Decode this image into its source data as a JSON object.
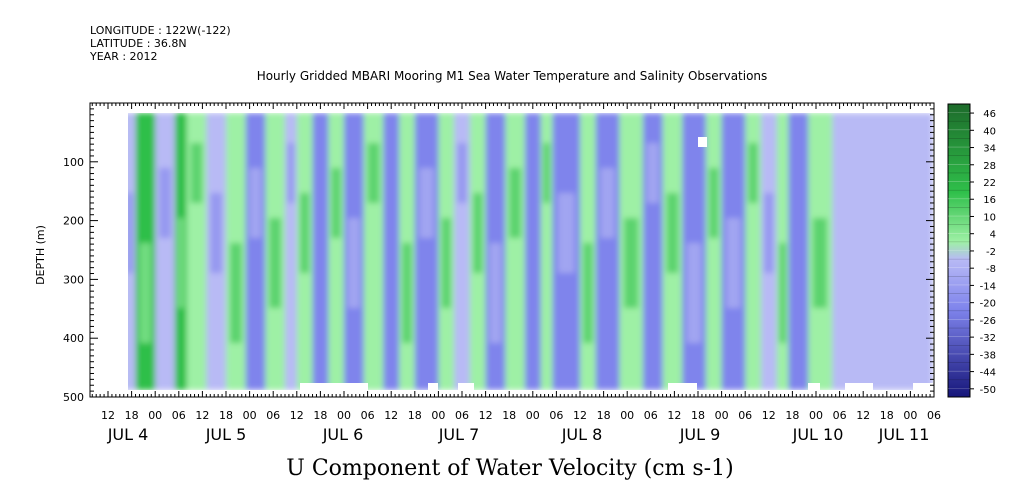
{
  "header": {
    "longitude": "LONGITUDE : 122W(-122)",
    "latitude": "LATITUDE : 36.8N",
    "year": "YEAR : 2012"
  },
  "chart_data": {
    "type": "heatmap",
    "title": "Hourly Gridded MBARI Mooring M1 Sea Water Temperature and Salinity Observations",
    "xlabel": "U Component of Water Velocity (cm s-1)",
    "ylabel": "DEPTH (m)",
    "y_ticks": [
      100,
      200,
      300,
      400,
      500
    ],
    "ylim": [
      500,
      0
    ],
    "hour_ticks": [
      "12",
      "18",
      "00",
      "06",
      "12",
      "18",
      "00",
      "06",
      "12",
      "18",
      "00",
      "06",
      "12",
      "18",
      "00",
      "06",
      "12",
      "18",
      "00",
      "06",
      "12",
      "18",
      "00",
      "06",
      "12",
      "18",
      "00",
      "06",
      "12",
      "18",
      "00",
      "06",
      "12",
      "18",
      "00",
      "06"
    ],
    "day_labels": [
      "JUL  4",
      "JUL  5",
      "JUL  6",
      "JUL  7",
      "JUL  8",
      "JUL  9",
      "JUL 10",
      "JUL 11"
    ],
    "colorbar": {
      "ticks": [
        "46",
        "40",
        "34",
        "28",
        "22",
        "16",
        "10",
        "4",
        "-2",
        "-8",
        "-14",
        "-20",
        "-26",
        "-32",
        "-38",
        "-44",
        "-50"
      ],
      "colors": {
        "green_dark": "#1d6b2b",
        "green_mid": "#2fbf4a",
        "green_light": "#9ef0a5",
        "blue_light": "#b8baf5",
        "blue_mid": "#7f84ec",
        "blue_dark": "#16167a"
      }
    },
    "regions": [
      {
        "t0": 0,
        "t1": 4,
        "level": 10
      },
      {
        "t0": 4,
        "t1": 7,
        "level": -8
      },
      {
        "t0": 7,
        "t1": 12,
        "level": 16
      },
      {
        "t0": 12,
        "t1": 17,
        "level": -8
      },
      {
        "t0": 17,
        "t1": 20,
        "level": 12
      },
      {
        "t0": 20,
        "t1": 25,
        "level": 8
      },
      {
        "t0": 25,
        "t1": 30,
        "level": -10
      },
      {
        "t0": 30,
        "t1": 35,
        "level": 8
      },
      {
        "t0": 35,
        "t1": 40,
        "level": -14
      },
      {
        "t0": 40,
        "t1": 45,
        "level": 8
      },
      {
        "t0": 45,
        "t1": 48,
        "level": -6
      },
      {
        "t0": 48,
        "t1": 52,
        "level": 10
      },
      {
        "t0": 52,
        "t1": 56,
        "level": -12
      },
      {
        "t0": 56,
        "t1": 60,
        "level": 6
      },
      {
        "t0": 60,
        "t1": 65,
        "level": -16
      },
      {
        "t0": 65,
        "t1": 70,
        "level": 8
      },
      {
        "t0": 70,
        "t1": 74,
        "level": -12
      },
      {
        "t0": 74,
        "t1": 78,
        "level": 6
      },
      {
        "t0": 78,
        "t1": 84,
        "level": -16
      },
      {
        "t0": 84,
        "t1": 88,
        "level": 6
      },
      {
        "t0": 88,
        "t1": 92,
        "level": -8
      },
      {
        "t0": 92,
        "t1": 96,
        "level": 6
      },
      {
        "t0": 96,
        "t1": 101,
        "level": -14
      },
      {
        "t0": 101,
        "t1": 106,
        "level": 8
      },
      {
        "t0": 106,
        "t1": 110,
        "level": -12
      },
      {
        "t0": 110,
        "t1": 113,
        "level": 8
      },
      {
        "t0": 113,
        "t1": 120,
        "level": -18
      },
      {
        "t0": 120,
        "t1": 124,
        "level": 6
      },
      {
        "t0": 124,
        "t1": 130,
        "level": -16
      },
      {
        "t0": 130,
        "t1": 136,
        "level": 4
      },
      {
        "t0": 136,
        "t1": 141,
        "level": -14
      },
      {
        "t0": 141,
        "t1": 146,
        "level": 6
      },
      {
        "t0": 146,
        "t1": 152,
        "level": -14
      },
      {
        "t0": 152,
        "t1": 156,
        "level": 4
      },
      {
        "t0": 156,
        "t1": 162,
        "level": -14
      },
      {
        "t0": 162,
        "t1": 166,
        "level": 4
      },
      {
        "t0": 166,
        "t1": 170,
        "level": -10
      },
      {
        "t0": 170,
        "t1": 173,
        "level": 10
      },
      {
        "t0": 173,
        "t1": 178,
        "level": -12
      },
      {
        "t0": 178,
        "t1": 184,
        "level": 6
      }
    ]
  }
}
